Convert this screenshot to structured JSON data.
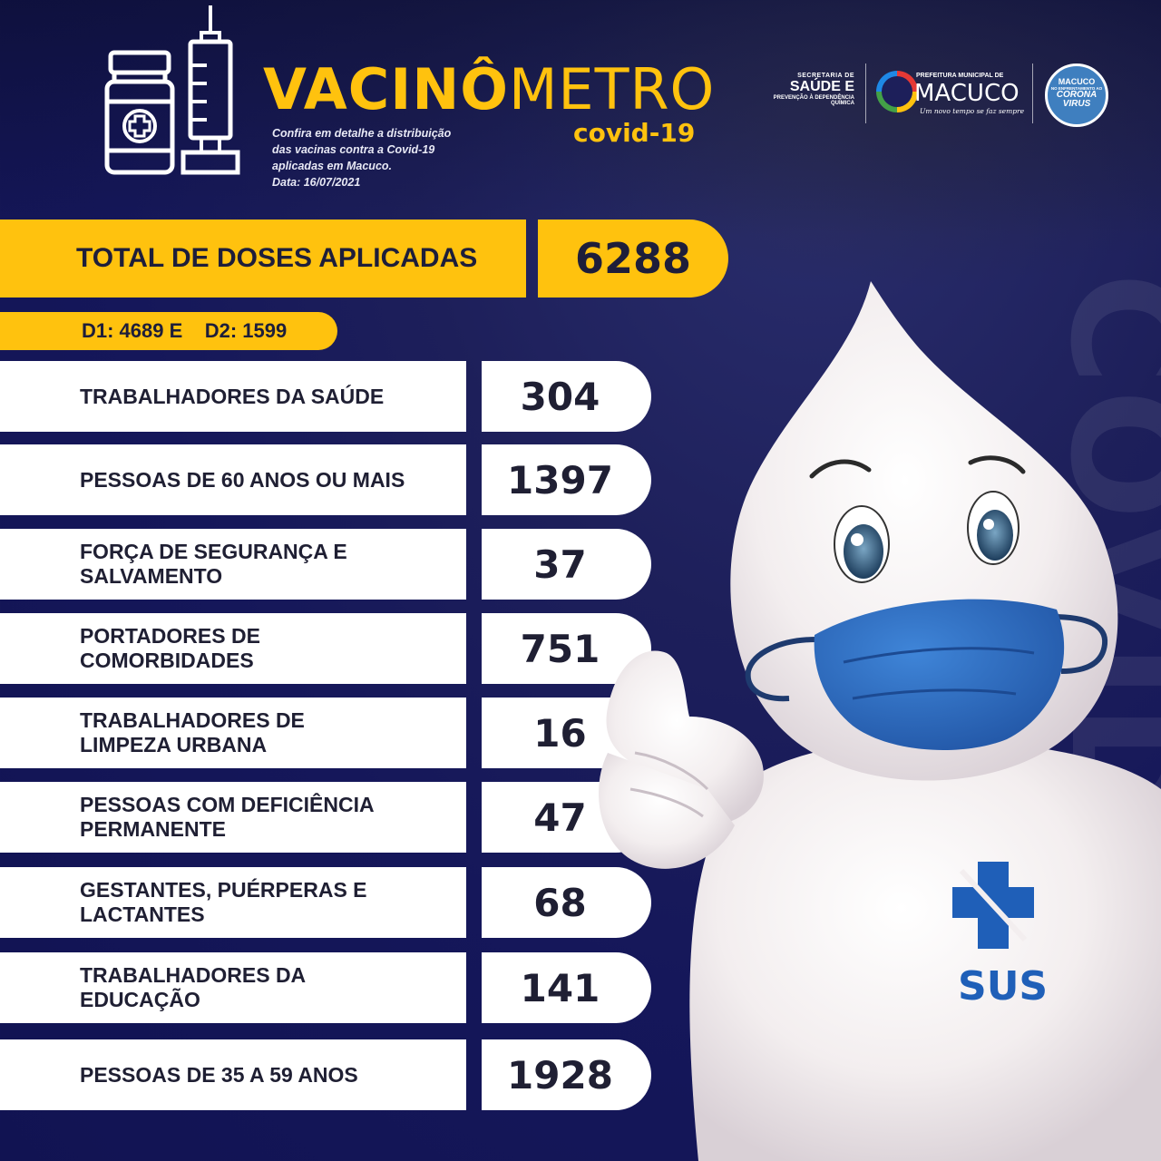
{
  "header": {
    "title_bold": "VACINÔ",
    "title_thin": "METRO",
    "subtitle": "covid-19",
    "description_lines": [
      "Confira em detalhe a distribuição",
      "das vacinas contra a Covid-19",
      "aplicadas em Macuco.",
      "Data: 16/07/2021"
    ]
  },
  "logos": {
    "saude": {
      "line1": "SECRETARIA DE",
      "line2": "SAÚDE E",
      "line3": "PREVENÇÃO À DEPENDÊNCIA QUÍMICA"
    },
    "macuco": {
      "top": "PREFEITURA MUNICIPAL DE",
      "name": "MACUCO",
      "slogan": "Um novo tempo se faz sempre"
    },
    "corona": {
      "line1": "MACUCO",
      "line2": "NO ENFRENTAMENTO AO",
      "line3": "CORONA",
      "line4": "VIRUS"
    }
  },
  "total": {
    "label": "TOTAL DE DOSES APLICADAS",
    "value": "6288",
    "doses": "D1: 4689 E    D2: 1599"
  },
  "rows": [
    {
      "label": [
        "TRABALHADORES DA SAÚDE"
      ],
      "value": "304"
    },
    {
      "label": [
        "PESSOAS DE 60 ANOS OU MAIS"
      ],
      "value": "1397"
    },
    {
      "label": [
        "FORÇA DE SEGURANÇA E",
        "SALVAMENTO"
      ],
      "value": "37"
    },
    {
      "label": [
        "PORTADORES DE",
        "COMORBIDADES"
      ],
      "value": "751"
    },
    {
      "label": [
        "TRABALHADORES DE",
        "LIMPEZA URBANA"
      ],
      "value": "16"
    },
    {
      "label": [
        "PESSOAS COM DEFICIÊNCIA",
        "PERMANENTE"
      ],
      "value": "47"
    },
    {
      "label": [
        "GESTANTES, PUÉRPERAS E",
        "LACTANTES"
      ],
      "value": "68"
    },
    {
      "label": [
        "TRABALHADORES DA",
        "EDUCAÇÃO"
      ],
      "value": "141"
    },
    {
      "label": [
        "PESSOAS DE 35 A 59 ANOS"
      ],
      "value": "1928"
    }
  ],
  "mascot": {
    "chest_text": "SUS"
  },
  "background_text": "COVID",
  "colors": {
    "accent": "#ffc20e",
    "background": "#1d1f5a",
    "mask": "#2f6fc4",
    "sus_blue": "#1f5fb8"
  },
  "icons": [
    "vaccine-vial-icon",
    "syringe-icon"
  ]
}
